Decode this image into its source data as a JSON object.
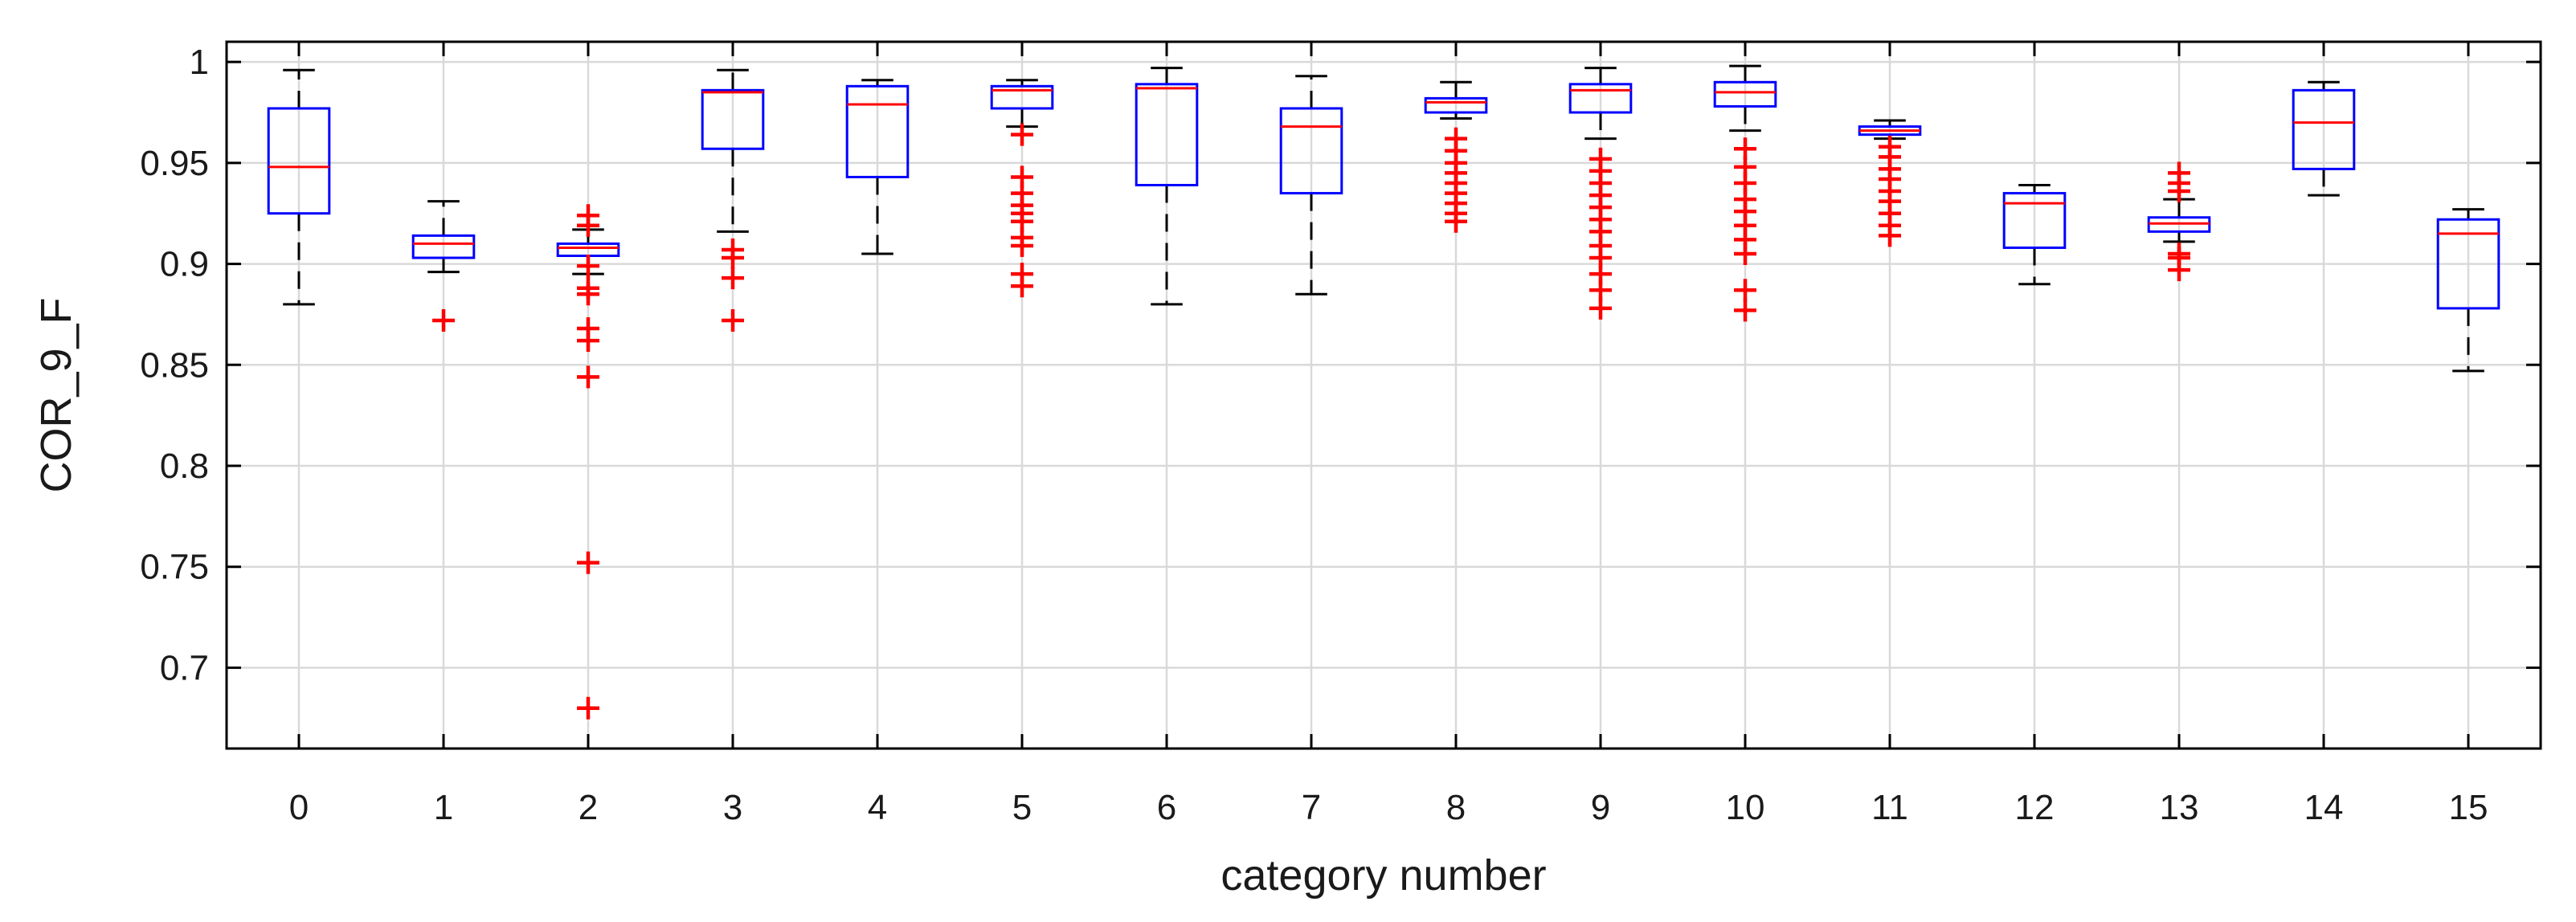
{
  "chart_data": {
    "type": "boxplot",
    "title": "",
    "xlabel": "category number",
    "ylabel": "COR_9_F",
    "ylim": [
      0.66,
      1.01
    ],
    "yticks": [
      0.7,
      0.75,
      0.8,
      0.85,
      0.9,
      0.95,
      1
    ],
    "ytick_labels": [
      "0.7",
      "0.75",
      "0.8",
      "0.85",
      "0.9",
      "0.95",
      "1"
    ],
    "grid": true,
    "colors": {
      "box": "#0000ff",
      "median": "#ff0000",
      "whisker": "#000000",
      "outlier": "#ff0000",
      "grid": "#d9d9d9",
      "axes": "#000000"
    },
    "categories": [
      "0",
      "1",
      "2",
      "3",
      "4",
      "5",
      "6",
      "7",
      "8",
      "9",
      "10",
      "11",
      "12",
      "13",
      "14",
      "15"
    ],
    "boxes": [
      {
        "category": "0",
        "whisker_low": 0.88,
        "q1": 0.925,
        "median": 0.948,
        "q3": 0.977,
        "whisker_high": 0.996,
        "outliers": []
      },
      {
        "category": "1",
        "whisker_low": 0.896,
        "q1": 0.903,
        "median": 0.91,
        "q3": 0.914,
        "whisker_high": 0.931,
        "outliers": [
          0.872
        ]
      },
      {
        "category": "2",
        "whisker_low": 0.895,
        "q1": 0.904,
        "median": 0.908,
        "q3": 0.91,
        "whisker_high": 0.917,
        "outliers": [
          0.924,
          0.919,
          0.899,
          0.888,
          0.885,
          0.868,
          0.862,
          0.844,
          0.752,
          0.68
        ]
      },
      {
        "category": "3",
        "whisker_low": 0.916,
        "q1": 0.957,
        "median": 0.985,
        "q3": 0.986,
        "whisker_high": 0.996,
        "outliers": [
          0.907,
          0.903,
          0.893,
          0.872
        ]
      },
      {
        "category": "4",
        "whisker_low": 0.905,
        "q1": 0.943,
        "median": 0.979,
        "q3": 0.988,
        "whisker_high": 0.991,
        "outliers": []
      },
      {
        "category": "5",
        "whisker_low": 0.968,
        "q1": 0.977,
        "median": 0.986,
        "q3": 0.988,
        "whisker_high": 0.991,
        "outliers": [
          0.964,
          0.943,
          0.935,
          0.929,
          0.925,
          0.921,
          0.913,
          0.909,
          0.895,
          0.889
        ]
      },
      {
        "category": "6",
        "whisker_low": 0.88,
        "q1": 0.939,
        "median": 0.987,
        "q3": 0.989,
        "whisker_high": 0.997,
        "outliers": []
      },
      {
        "category": "7",
        "whisker_low": 0.885,
        "q1": 0.935,
        "median": 0.968,
        "q3": 0.977,
        "whisker_high": 0.993,
        "outliers": []
      },
      {
        "category": "8",
        "whisker_low": 0.972,
        "q1": 0.975,
        "median": 0.98,
        "q3": 0.982,
        "whisker_high": 0.99,
        "outliers": [
          0.962,
          0.956,
          0.95,
          0.945,
          0.94,
          0.935,
          0.93,
          0.925,
          0.921
        ]
      },
      {
        "category": "9",
        "whisker_low": 0.962,
        "q1": 0.975,
        "median": 0.986,
        "q3": 0.989,
        "whisker_high": 0.997,
        "outliers": [
          0.952,
          0.946,
          0.94,
          0.934,
          0.928,
          0.922,
          0.916,
          0.909,
          0.903,
          0.895,
          0.887,
          0.878
        ]
      },
      {
        "category": "10",
        "whisker_low": 0.966,
        "q1": 0.978,
        "median": 0.985,
        "q3": 0.99,
        "whisker_high": 0.998,
        "outliers": [
          0.957,
          0.948,
          0.94,
          0.932,
          0.926,
          0.919,
          0.912,
          0.905,
          0.887,
          0.877
        ]
      },
      {
        "category": "11",
        "whisker_low": 0.962,
        "q1": 0.964,
        "median": 0.966,
        "q3": 0.968,
        "whisker_high": 0.971,
        "outliers": [
          0.958,
          0.953,
          0.947,
          0.942,
          0.936,
          0.931,
          0.925,
          0.919,
          0.914
        ]
      },
      {
        "category": "12",
        "whisker_low": 0.89,
        "q1": 0.908,
        "median": 0.93,
        "q3": 0.935,
        "whisker_high": 0.939,
        "outliers": []
      },
      {
        "category": "13",
        "whisker_low": 0.911,
        "q1": 0.916,
        "median": 0.92,
        "q3": 0.923,
        "whisker_high": 0.932,
        "outliers": [
          0.945,
          0.94,
          0.936,
          0.905,
          0.903,
          0.897
        ]
      },
      {
        "category": "14",
        "whisker_low": 0.934,
        "q1": 0.947,
        "median": 0.97,
        "q3": 0.986,
        "whisker_high": 0.99,
        "outliers": []
      },
      {
        "category": "15",
        "whisker_low": 0.847,
        "q1": 0.878,
        "median": 0.915,
        "q3": 0.922,
        "whisker_high": 0.927,
        "outliers": []
      }
    ]
  }
}
